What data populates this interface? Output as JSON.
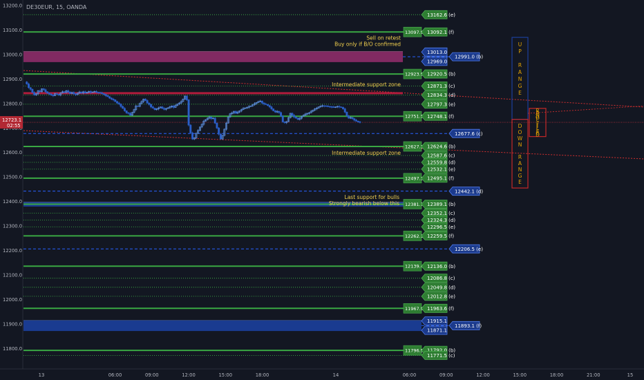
{
  "symbol_title": "DE30EUR, 15, OANDA",
  "price_axis": {
    "ticks": [
      {
        "value": 13200,
        "label": "13200.0"
      },
      {
        "value": 13100,
        "label": "13100.0"
      },
      {
        "value": 13000,
        "label": "13000.0"
      },
      {
        "value": 12900,
        "label": "12900.0"
      },
      {
        "value": 12800,
        "label": "12800.0"
      },
      {
        "value": 12700,
        "label": "12700.0"
      },
      {
        "value": 12600,
        "label": "12600.0"
      },
      {
        "value": 12500,
        "label": "12500.0"
      },
      {
        "value": 12400,
        "label": "12400.0"
      },
      {
        "value": 12300,
        "label": "12300.0"
      },
      {
        "value": 12200,
        "label": "12200.0"
      },
      {
        "value": 12100,
        "label": "12100.0"
      },
      {
        "value": 12000,
        "label": "12000.0"
      },
      {
        "value": 11900,
        "label": "11900.0"
      },
      {
        "value": 11800,
        "label": "11800.0"
      }
    ],
    "current_price": {
      "value": 12723.1,
      "label": "12723.1",
      "countdown": "02:55"
    }
  },
  "time_axis": {
    "ticks": [
      {
        "label": "13",
        "t": 0
      },
      {
        "label": "06:00",
        "t": 6
      },
      {
        "label": "09:00",
        "t": 9
      },
      {
        "label": "12:00",
        "t": 12
      },
      {
        "label": "15:00",
        "t": 15
      },
      {
        "label": "18:00",
        "t": 18
      },
      {
        "label": "14",
        "t": 24
      },
      {
        "label": "06:00",
        "t": 30
      },
      {
        "label": "09:00",
        "t": 33
      },
      {
        "label": "12:00",
        "t": 36
      },
      {
        "label": "15:00",
        "t": 39
      },
      {
        "label": "18:00",
        "t": 42
      },
      {
        "label": "21:00",
        "t": 45
      },
      {
        "label": "15",
        "t": 48
      },
      {
        "label": "03:00",
        "t": 51
      },
      {
        "label": "06:00",
        "t": 54
      }
    ]
  },
  "zones": [
    {
      "name": "resistance-zone",
      "top": 13013.0,
      "bottom": 12969.0,
      "color": "#8e2c69",
      "text_top": "13013.0",
      "text_bottom": "12969.0",
      "mid_label": "12991.0 (b)"
    },
    {
      "name": "support-zone-bulls",
      "top": 12398.0,
      "bottom": 12379.0,
      "color": "#1c3f9c",
      "text_top": "",
      "text_bottom": "",
      "mid_label": ""
    },
    {
      "name": "support-zone-lower",
      "top": 11915.1,
      "bottom": 11871.1,
      "color": "#1c3f9c",
      "text_top": "11915.1",
      "text_bottom": "11871.1",
      "mid_label": "11893.1 (f)"
    }
  ],
  "levels": [
    {
      "value": 13162.6,
      "style": "dot",
      "label": "13162.6 (e)",
      "box": ""
    },
    {
      "value": 13092.1,
      "style": "solid",
      "label": "13092.1 (f)",
      "box": "13097.9"
    },
    {
      "value": 12920.5,
      "style": "solid",
      "label": "12920.5 (b)",
      "box": "12923.9"
    },
    {
      "value": 12871.3,
      "style": "dot",
      "label": "12871.3 (c)",
      "box": ""
    },
    {
      "value": 12834.3,
      "style": "dot",
      "label": "12834.3 (d)",
      "box": ""
    },
    {
      "value": 12797.3,
      "style": "dot",
      "label": "12797.3 (e)",
      "box": ""
    },
    {
      "value": 12748.1,
      "style": "solid",
      "label": "12748.1 (f)",
      "box": "12751.5"
    },
    {
      "value": 12624.6,
      "style": "solid",
      "label": "12624.6 (b)",
      "box": "12627.3"
    },
    {
      "value": 12587.6,
      "style": "dot",
      "label": "12587.6 (c)",
      "box": ""
    },
    {
      "value": 12559.8,
      "style": "dot",
      "label": "12559.8 (d)",
      "box": ""
    },
    {
      "value": 12532.1,
      "style": "dot",
      "label": "12532.1 (e)",
      "box": ""
    },
    {
      "value": 12495.1,
      "style": "solid",
      "label": "12495.1 (f)",
      "box": "12497.3"
    },
    {
      "value": 12389.1,
      "style": "solid",
      "label": "12389.1 (b)",
      "box": "12381.7"
    },
    {
      "value": 12352.1,
      "style": "dot",
      "label": "12352.1 (c)",
      "box": ""
    },
    {
      "value": 12324.3,
      "style": "dot",
      "label": "12324.3 (d)",
      "box": ""
    },
    {
      "value": 12296.5,
      "style": "dot",
      "label": "12296.5 (e)",
      "box": ""
    },
    {
      "value": 12259.5,
      "style": "solid",
      "label": "12259.5 (f)",
      "box": "12262.1"
    },
    {
      "value": 12136.0,
      "style": "solid",
      "label": "12136.0 (b)",
      "box": "12139.4"
    },
    {
      "value": 12086.8,
      "style": "dot",
      "label": "12086.8 (c)",
      "box": ""
    },
    {
      "value": 12049.8,
      "style": "dot",
      "label": "12049.8 (d)",
      "box": ""
    },
    {
      "value": 12012.8,
      "style": "dot",
      "label": "12012.8 (e)",
      "box": ""
    },
    {
      "value": 11963.6,
      "style": "solid",
      "label": "11963.6 (f)",
      "box": "11967.9"
    },
    {
      "value": 11792.0,
      "style": "solid",
      "label": "11792.0 (b)",
      "box": "11796.9"
    },
    {
      "value": 11771.5,
      "style": "dot",
      "label": "11771.5 (c)",
      "box": ""
    }
  ],
  "dashed_levels": [
    {
      "value": 12677.6,
      "label": "12677.6 (c)"
    },
    {
      "value": 12442.1,
      "label": "12442.1 (d)"
    },
    {
      "value": 12206.5,
      "label": "12206.5 (e)"
    }
  ],
  "red_line": {
    "value": 12842
  },
  "annotations": [
    {
      "name": "sell-on-retest-note",
      "lines": [
        "Sell on retest",
        "Buy only if B/O confirmed"
      ]
    },
    {
      "name": "intermediate-support-note-1",
      "lines": [
        "Intermediate support zone"
      ]
    },
    {
      "name": "intermediate-support-note-2",
      "lines": [
        "Intermediate support zone"
      ]
    },
    {
      "name": "last-support-note",
      "lines": [
        "Last support for bulls",
        "Strongly bearish below this"
      ]
    }
  ],
  "range_boxes": [
    {
      "name": "up-range-box",
      "text": "UP RANGE",
      "color": "#1c3f9c"
    },
    {
      "name": "down-range-box",
      "text": "DOWN RANGE",
      "color": "#c62828"
    },
    {
      "name": "range-filled-box",
      "text": "RANGE FILLED",
      "color": "#c62828"
    }
  ],
  "colors": {
    "background": "#131722",
    "axis_text": "#b2b5be",
    "support_green": "#3aa843",
    "label_green": "#2e7d32",
    "label_blue": "#1b3a8c",
    "candle_up": "#5b8cd9",
    "candle_down": "#2b5fc9",
    "red_line": "#b01c3c",
    "note_text": "#f2d04e",
    "price_label": "#f23645"
  },
  "price_series": [
    12888,
    12880,
    12865,
    12858,
    12845,
    12835,
    12840,
    12852,
    12848,
    12860,
    12856,
    12848,
    12842,
    12838,
    12835,
    12832,
    12840,
    12838,
    12835,
    12843,
    12848,
    12845,
    12852,
    12847,
    12841,
    12845,
    12840,
    12836,
    12842,
    12847,
    12843,
    12848,
    12843,
    12846,
    12849,
    12845,
    12847,
    12849,
    12846,
    12845,
    12843,
    12840,
    12837,
    12832,
    12828,
    12822,
    12818,
    12815,
    12808,
    12802,
    12798,
    12788,
    12780,
    12770,
    12762,
    12760,
    12752,
    12764,
    12775,
    12790,
    12788,
    12800,
    12808,
    12818,
    12812,
    12802,
    12796,
    12786,
    12781,
    12775,
    12778,
    12782,
    12786,
    12780,
    12776,
    12780,
    12782,
    12786,
    12790,
    12784,
    12792,
    12798,
    12802,
    12808,
    12818,
    12830,
    12815,
    12712,
    12680,
    12655,
    12660,
    12678,
    12690,
    12704,
    12715,
    12728,
    12734,
    12740,
    12745,
    12738,
    12740,
    12720,
    12700,
    12675,
    12655,
    12670,
    12695,
    12720,
    12745,
    12758,
    12762,
    12768,
    12760,
    12765,
    12770,
    12775,
    12780,
    12782,
    12784,
    12788,
    12790,
    12795,
    12800,
    12804,
    12808,
    12810,
    12802,
    12798,
    12796,
    12792,
    12786,
    12778,
    12770,
    12765,
    12768,
    12763,
    12748,
    12725,
    12722,
    12726,
    12742,
    12760,
    12752,
    12745,
    12740,
    12735,
    12740,
    12748,
    12752,
    12757,
    12760,
    12762,
    12768,
    12773,
    12778,
    12781,
    12786,
    12789,
    12791,
    12790,
    12789,
    12788,
    12787,
    12786,
    12785,
    12786,
    12788,
    12786,
    12784,
    12778,
    12765,
    12750,
    12740,
    12743,
    12738,
    12732,
    12728,
    12725,
    12723
  ]
}
